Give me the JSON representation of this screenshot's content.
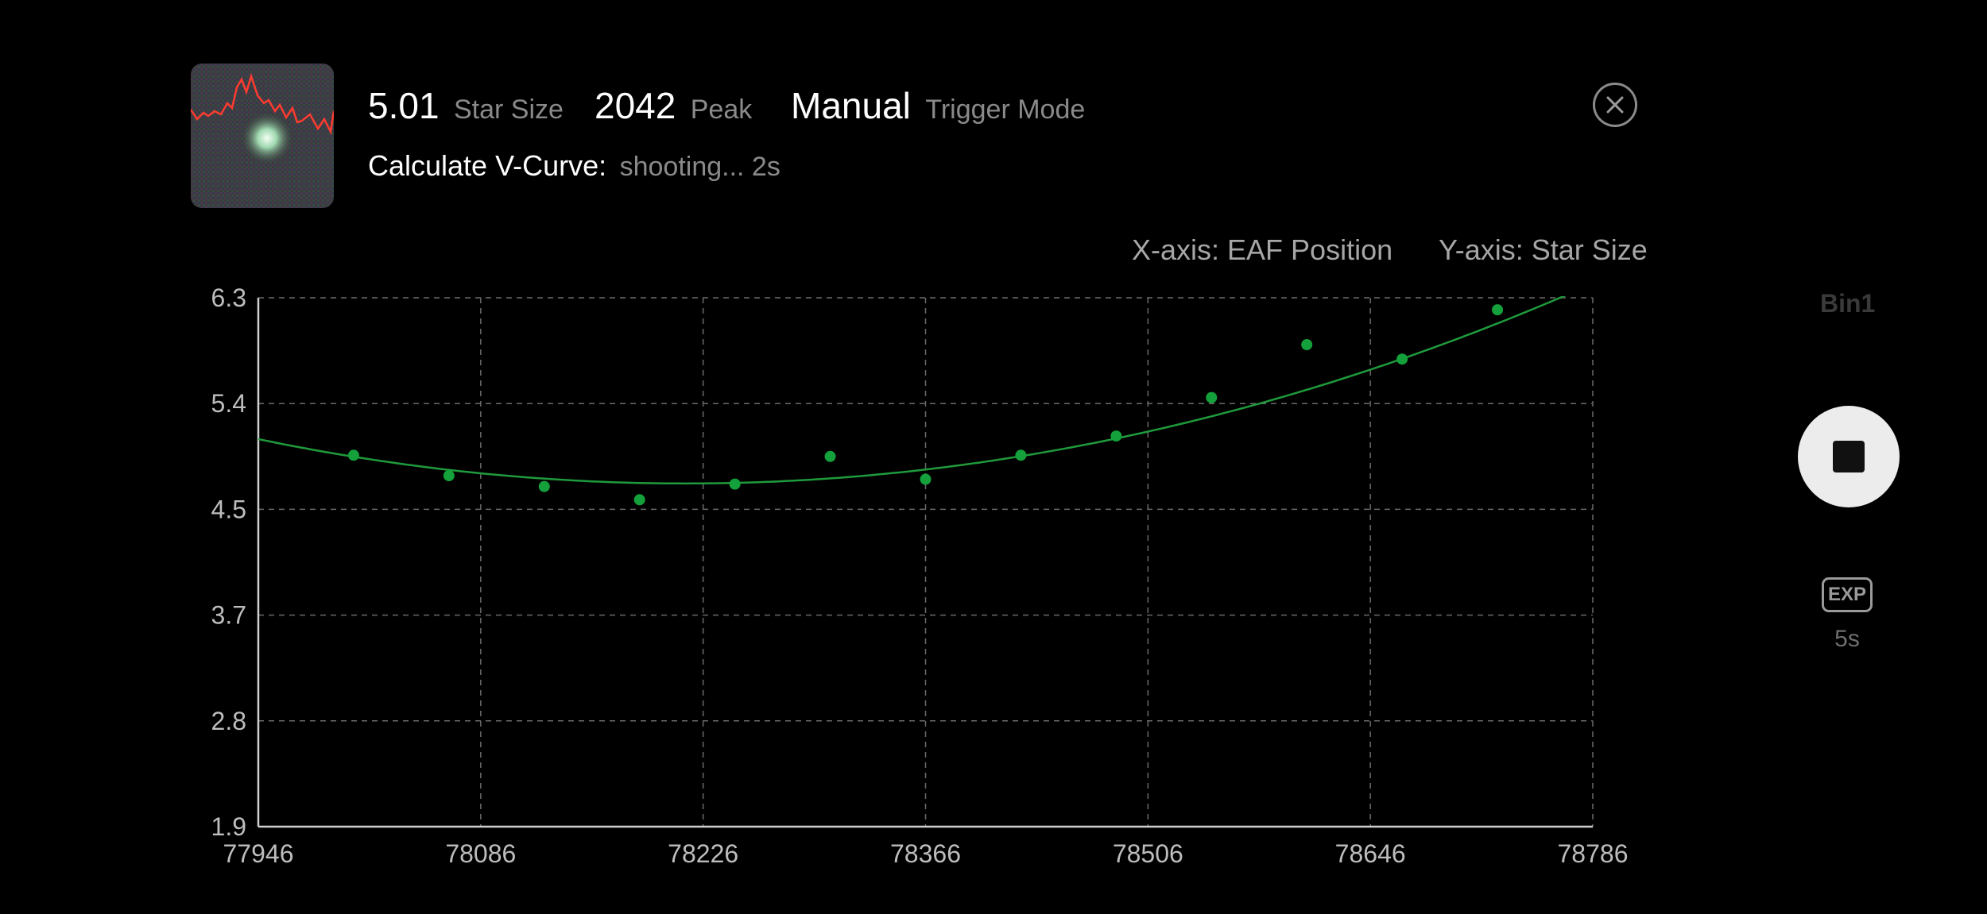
{
  "header": {
    "star_size_value": "5.01",
    "star_size_label": "Star Size",
    "peak_value": "2042",
    "peak_label": "Peak",
    "trigger_value": "Manual",
    "trigger_label": "Trigger Mode",
    "vcurve_label": "Calculate V-Curve:",
    "vcurve_status": "shooting... 2s",
    "close_icon": "close-circle-icon"
  },
  "axis_info": {
    "x_desc": "X-axis: EAF Position",
    "y_desc": "Y-axis: Star Size"
  },
  "side_controls": {
    "bin_label": "Bin1",
    "stop_icon": "stop-icon",
    "exp_label": "EXP",
    "exp_value": "5s"
  },
  "colors": {
    "curve": "#1f9a3c",
    "points": "#14a03a",
    "grid": "#6a6a6a",
    "axis": "#cfcfcf",
    "ticks": "#bdbdbd"
  },
  "chart_data": {
    "type": "scatter",
    "x_ticks": [
      "77946",
      "78086",
      "78226",
      "78366",
      "78506",
      "78646",
      "78786"
    ],
    "y_ticks": [
      "6.3",
      "5.4",
      "4.5",
      "3.7",
      "2.8",
      "1.9"
    ],
    "xlim": [
      77946,
      78786
    ],
    "ylim": [
      1.9,
      6.3
    ],
    "grid": true,
    "points": [
      {
        "x": 78006,
        "y": 4.99
      },
      {
        "x": 78066,
        "y": 4.82
      },
      {
        "x": 78126,
        "y": 4.73
      },
      {
        "x": 78186,
        "y": 4.62
      },
      {
        "x": 78246,
        "y": 4.75
      },
      {
        "x": 78306,
        "y": 4.98
      },
      {
        "x": 78366,
        "y": 4.79
      },
      {
        "x": 78426,
        "y": 4.99
      },
      {
        "x": 78486,
        "y": 5.15
      },
      {
        "x": 78546,
        "y": 5.47
      },
      {
        "x": 78606,
        "y": 5.91
      },
      {
        "x": 78666,
        "y": 5.79
      },
      {
        "x": 78726,
        "y": 6.2
      }
    ],
    "fit_curve": {
      "type": "quadratic",
      "vertex_x": 78215,
      "vertex_y": 4.755,
      "a": 5.1e-06
    }
  }
}
